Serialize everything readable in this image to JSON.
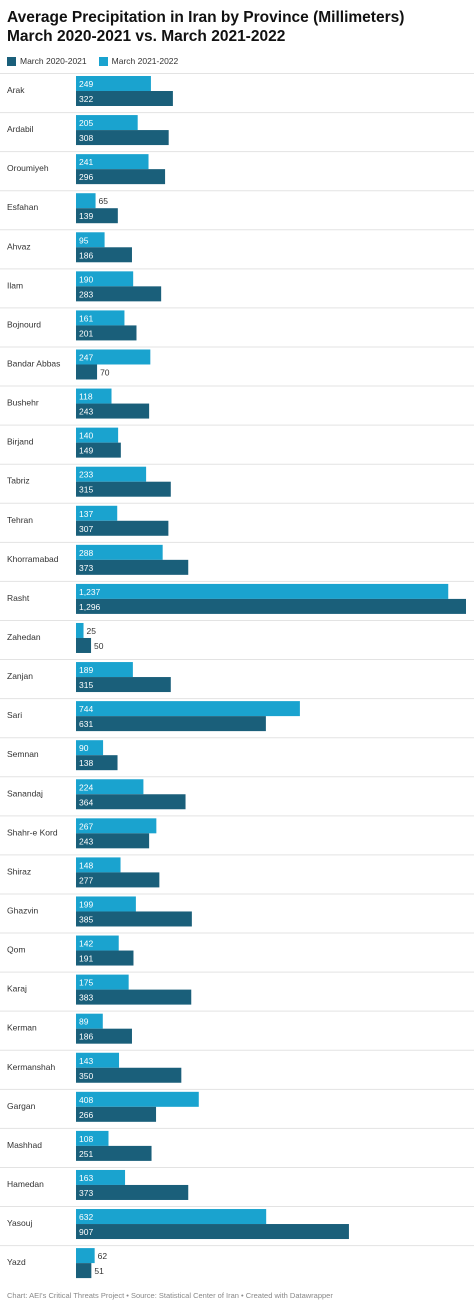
{
  "title_line1": "Average Precipitation in Iran by Province (Millimeters)",
  "title_line2": "March 2020-2021 vs. March 2021-2022",
  "legend": [
    {
      "label": "March 2020-2021",
      "color": "#1a5f7a"
    },
    {
      "label": "March 2021-2022",
      "color": "#1aa3cf"
    }
  ],
  "footer": "Chart: AEI's Critical Threats Project • Source: Statistical Center of Iran • Created with Datawrapper",
  "chart_data": {
    "type": "bar",
    "orientation": "horizontal",
    "title": "Average Precipitation in Iran by Province (Millimeters)",
    "subtitle": "March 2020-2021 vs. March 2021-2022",
    "xlim": [
      0,
      1296
    ],
    "categories": [
      "Arak",
      "Ardabil",
      "Oroumiyeh",
      "Esfahan",
      "Ahvaz",
      "Ilam",
      "Bojnourd",
      "Bandar Abbas",
      "Bushehr",
      "Birjand",
      "Tabriz",
      "Tehran",
      "Khorramabad",
      "Rasht",
      "Zahedan",
      "Zanjan",
      "Sari",
      "Semnan",
      "Sanandaj",
      "Shahr-e Kord",
      "Shiraz",
      "Ghazvin",
      "Qom",
      "Karaj",
      "Kerman",
      "Kermanshah",
      "Gargan",
      "Mashhad",
      "Hamedan",
      "Yasouj",
      "Yazd"
    ],
    "series": [
      {
        "name": "March 2021-2022",
        "color": "#1aa3cf",
        "values": [
          249,
          205,
          241,
          65,
          95,
          190,
          161,
          247,
          118,
          140,
          233,
          137,
          288,
          1237,
          25,
          189,
          744,
          90,
          224,
          267,
          148,
          199,
          142,
          175,
          89,
          143,
          408,
          108,
          163,
          632,
          62
        ],
        "labels": [
          "249",
          "205",
          "241",
          "65",
          "95",
          "190",
          "161",
          "247",
          "118",
          "140",
          "233",
          "137",
          "288",
          "1,237",
          "25",
          "189",
          "744",
          "90",
          "224",
          "267",
          "148",
          "199",
          "142",
          "175",
          "89",
          "143",
          "408",
          "108",
          "163",
          "632",
          "62"
        ]
      },
      {
        "name": "March 2020-2021",
        "color": "#1a5f7a",
        "values": [
          322,
          308,
          296,
          139,
          186,
          283,
          201,
          70,
          243,
          149,
          315,
          307,
          373,
          1296,
          50,
          315,
          631,
          138,
          364,
          243,
          277,
          385,
          191,
          383,
          186,
          350,
          266,
          251,
          373,
          907,
          51
        ],
        "labels": [
          "322",
          "308",
          "296",
          "139",
          "186",
          "283",
          "201",
          "70",
          "243",
          "149",
          "315",
          "307",
          "373",
          "1,296",
          "50",
          "315",
          "631",
          "138",
          "364",
          "243",
          "277",
          "385",
          "191",
          "383",
          "186",
          "350",
          "266",
          "251",
          "373",
          "907",
          "51"
        ]
      }
    ]
  }
}
